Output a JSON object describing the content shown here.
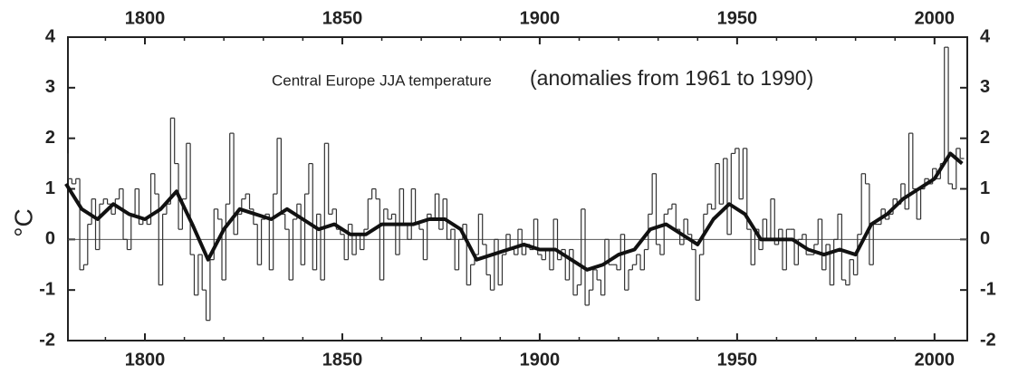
{
  "chart_data": {
    "type": "step-line",
    "title": "Central Europe JJA temperature",
    "subtitle": "(anomalies from 1961 to 1990)",
    "y_label": "°C",
    "xlim": [
      1780.5,
      2008.3
    ],
    "ylim": [
      -2,
      4
    ],
    "xticks": [
      1800,
      1850,
      1900,
      1950,
      2000
    ],
    "yticks": [
      -2,
      -1,
      0,
      1,
      2,
      3,
      4
    ],
    "zero_line": true,
    "x": [
      1780,
      1781,
      1782,
      1783,
      1784,
      1785,
      1786,
      1787,
      1788,
      1789,
      1790,
      1791,
      1792,
      1793,
      1794,
      1795,
      1796,
      1797,
      1798,
      1799,
      1800,
      1801,
      1802,
      1803,
      1804,
      1805,
      1806,
      1807,
      1808,
      1809,
      1810,
      1811,
      1812,
      1813,
      1814,
      1815,
      1816,
      1817,
      1818,
      1819,
      1820,
      1821,
      1822,
      1823,
      1824,
      1825,
      1826,
      1827,
      1828,
      1829,
      1830,
      1831,
      1832,
      1833,
      1834,
      1835,
      1836,
      1837,
      1838,
      1839,
      1840,
      1841,
      1842,
      1843,
      1844,
      1845,
      1846,
      1847,
      1848,
      1849,
      1850,
      1851,
      1852,
      1853,
      1854,
      1855,
      1856,
      1857,
      1858,
      1859,
      1860,
      1861,
      1862,
      1863,
      1864,
      1865,
      1866,
      1867,
      1868,
      1869,
      1870,
      1871,
      1872,
      1873,
      1874,
      1875,
      1876,
      1877,
      1878,
      1879,
      1880,
      1881,
      1882,
      1883,
      1884,
      1885,
      1886,
      1887,
      1888,
      1889,
      1890,
      1891,
      1892,
      1893,
      1894,
      1895,
      1896,
      1897,
      1898,
      1899,
      1900,
      1901,
      1902,
      1903,
      1904,
      1905,
      1906,
      1907,
      1908,
      1909,
      1910,
      1911,
      1912,
      1913,
      1914,
      1915,
      1916,
      1917,
      1918,
      1919,
      1920,
      1921,
      1922,
      1923,
      1924,
      1925,
      1926,
      1927,
      1928,
      1929,
      1930,
      1931,
      1932,
      1933,
      1934,
      1935,
      1936,
      1937,
      1938,
      1939,
      1940,
      1941,
      1942,
      1943,
      1944,
      1945,
      1946,
      1947,
      1948,
      1949,
      1950,
      1951,
      1952,
      1953,
      1954,
      1955,
      1956,
      1957,
      1958,
      1959,
      1960,
      1961,
      1962,
      1963,
      1964,
      1965,
      1966,
      1967,
      1968,
      1969,
      1970,
      1971,
      1972,
      1973,
      1974,
      1975,
      1976,
      1977,
      1978,
      1979,
      1980,
      1981,
      1982,
      1983,
      1984,
      1985,
      1986,
      1987,
      1988,
      1989,
      1990,
      1991,
      1992,
      1993,
      1994,
      1995,
      1996,
      1997,
      1998,
      1999,
      2000,
      2001,
      2002,
      2003,
      2004,
      2005,
      2006,
      2007
    ],
    "series": [
      {
        "color": "#333333",
        "values": [
          1.7,
          1.2,
          1.1,
          1.2,
          -0.6,
          -0.5,
          0.3,
          0.8,
          -0.2,
          0.7,
          0.8,
          0.7,
          0.5,
          0.8,
          1.0,
          0.0,
          -0.2,
          0.5,
          1.0,
          0.3,
          0.4,
          0.3,
          1.3,
          0.9,
          -0.9,
          0.5,
          0.7,
          2.4,
          1.5,
          0.2,
          0.8,
          1.9,
          -0.3,
          -1.1,
          -0.3,
          -1.0,
          -1.6,
          -0.4,
          0.6,
          0.4,
          -0.8,
          0.7,
          2.1,
          0.1,
          0.5,
          0.8,
          0.9,
          0.6,
          0.3,
          -0.5,
          0.4,
          0.5,
          -0.6,
          0.9,
          2.0,
          0.5,
          0.2,
          -0.8,
          0.4,
          0.7,
          -0.5,
          0.9,
          1.5,
          -0.6,
          0.5,
          -0.8,
          1.9,
          0.5,
          0.6,
          0.2,
          0.1,
          -0.4,
          0.3,
          -0.3,
          0.1,
          -0.2,
          0.2,
          0.8,
          1.0,
          0.8,
          -0.8,
          0.6,
          0.4,
          0.5,
          -0.3,
          1.0,
          0.3,
          0.0,
          1.0,
          0.3,
          0.2,
          -0.4,
          0.5,
          0.4,
          0.9,
          0.2,
          0.8,
          0.0,
          0.2,
          -0.6,
          0.0,
          0.3,
          -0.9,
          -0.5,
          -0.3,
          0.5,
          -0.1,
          -0.7,
          -1.0,
          0.0,
          -0.9,
          -0.3,
          0.1,
          -0.2,
          -0.3,
          0.2,
          -0.3,
          -0.1,
          -0.2,
          0.4,
          -0.3,
          -0.4,
          -0.2,
          -0.6,
          0.4,
          -0.4,
          -0.2,
          -0.8,
          -0.2,
          -1.1,
          -0.9,
          0.6,
          -1.3,
          -1.0,
          -0.6,
          -0.8,
          -1.1,
          0.0,
          -0.5,
          -0.5,
          -0.6,
          0.1,
          -1.0,
          -0.6,
          -0.5,
          -0.3,
          -0.6,
          -0.2,
          0.5,
          1.3,
          -0.1,
          -0.3,
          0.5,
          0.6,
          0.7,
          0.2,
          -0.1,
          0.4,
          0.1,
          -0.2,
          -1.2,
          -0.3,
          0.5,
          0.7,
          0.6,
          1.5,
          0.7,
          1.6,
          0.1,
          1.7,
          1.8,
          0.8,
          1.8,
          0.2,
          -0.5,
          0.2,
          -0.2,
          0.4,
          0.0,
          0.8,
          -0.1,
          0.2,
          -0.6,
          0.2,
          0.2,
          -0.5,
          0.0,
          0.1,
          -0.3,
          -0.3,
          -0.1,
          0.4,
          -0.6,
          -0.1,
          -0.9,
          0.0,
          0.5,
          -0.8,
          -0.9,
          -0.4,
          -0.7,
          0.1,
          1.3,
          1.1,
          -0.5,
          0.3,
          0.3,
          0.6,
          0.4,
          0.5,
          0.8,
          0.7,
          1.1,
          0.6,
          2.1,
          1.0,
          0.4,
          1.0,
          1.2,
          1.1,
          1.4,
          1.2,
          1.5,
          3.8,
          1.1,
          1.0,
          1.8,
          1.6
        ]
      },
      {
        "color": "#111111",
        "smooth": true,
        "x": [
          1780,
          1784,
          1788,
          1792,
          1796,
          1800,
          1804,
          1808,
          1812,
          1816,
          1820,
          1824,
          1828,
          1832,
          1836,
          1840,
          1844,
          1848,
          1852,
          1856,
          1860,
          1864,
          1868,
          1872,
          1876,
          1880,
          1884,
          1888,
          1892,
          1896,
          1900,
          1904,
          1908,
          1912,
          1916,
          1920,
          1924,
          1928,
          1932,
          1936,
          1940,
          1944,
          1948,
          1952,
          1956,
          1960,
          1964,
          1968,
          1972,
          1976,
          1980,
          1984,
          1988,
          1992,
          1996,
          2000,
          2004,
          2007
        ],
        "values": [
          1.1,
          0.6,
          0.4,
          0.7,
          0.5,
          0.4,
          0.6,
          0.95,
          0.3,
          -0.4,
          0.2,
          0.6,
          0.5,
          0.4,
          0.6,
          0.4,
          0.2,
          0.3,
          0.1,
          0.1,
          0.3,
          0.3,
          0.3,
          0.4,
          0.4,
          0.2,
          -0.4,
          -0.3,
          -0.2,
          -0.1,
          -0.2,
          -0.2,
          -0.4,
          -0.6,
          -0.5,
          -0.3,
          -0.2,
          0.2,
          0.3,
          0.1,
          -0.1,
          0.4,
          0.7,
          0.5,
          0.0,
          0.0,
          0.0,
          -0.2,
          -0.3,
          -0.2,
          -0.3,
          0.3,
          0.5,
          0.8,
          1.0,
          1.2,
          1.7,
          1.5
        ]
      }
    ]
  }
}
